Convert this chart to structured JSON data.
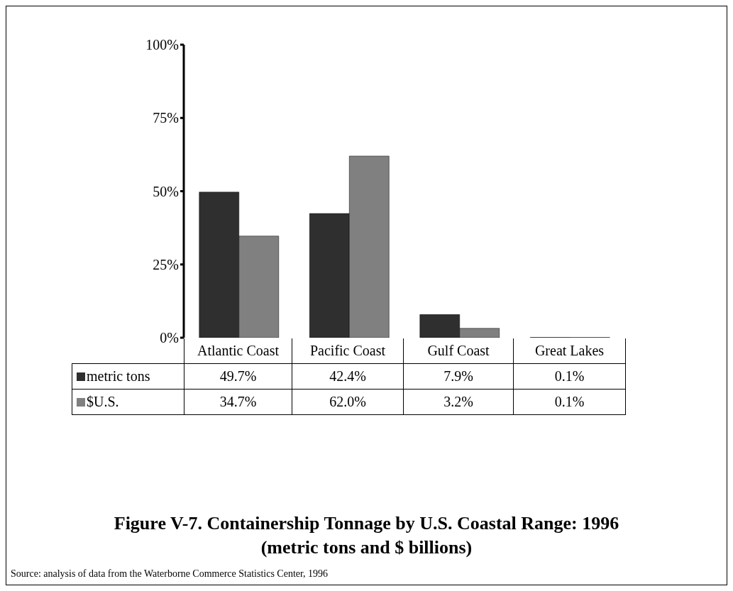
{
  "chart_data": {
    "type": "bar",
    "title": "Figure V-7. Containership Tonnage by U.S. Coastal Range: 1996",
    "subtitle": "(metric tons and $ billions)",
    "categories": [
      "Atlantic Coast",
      "Pacific Coast",
      "Gulf Coast",
      "Great Lakes"
    ],
    "series": [
      {
        "name": "metric tons",
        "color": "#2f2f2f",
        "values": [
          49.7,
          42.4,
          7.9,
          0.1
        ],
        "value_labels": [
          "49.7%",
          "42.4%",
          "7.9%",
          "0.1%"
        ]
      },
      {
        "name": "$U.S.",
        "color": "#808080",
        "values": [
          34.7,
          62.0,
          3.2,
          0.1
        ],
        "value_labels": [
          "34.7%",
          "62.0%",
          "3.2%",
          "0.1%"
        ]
      }
    ],
    "ylim": [
      0,
      100
    ],
    "yticks": [
      {
        "value": 0,
        "label": "0%"
      },
      {
        "value": 25,
        "label": "25%"
      },
      {
        "value": 50,
        "label": "50%"
      },
      {
        "value": 75,
        "label": "75%"
      },
      {
        "value": 100,
        "label": "100%"
      }
    ],
    "grid": false,
    "legend": "bottom left",
    "annotations": [
      "Source: analysis of data from the Waterborne Commerce Statistics Center, 1996"
    ]
  }
}
